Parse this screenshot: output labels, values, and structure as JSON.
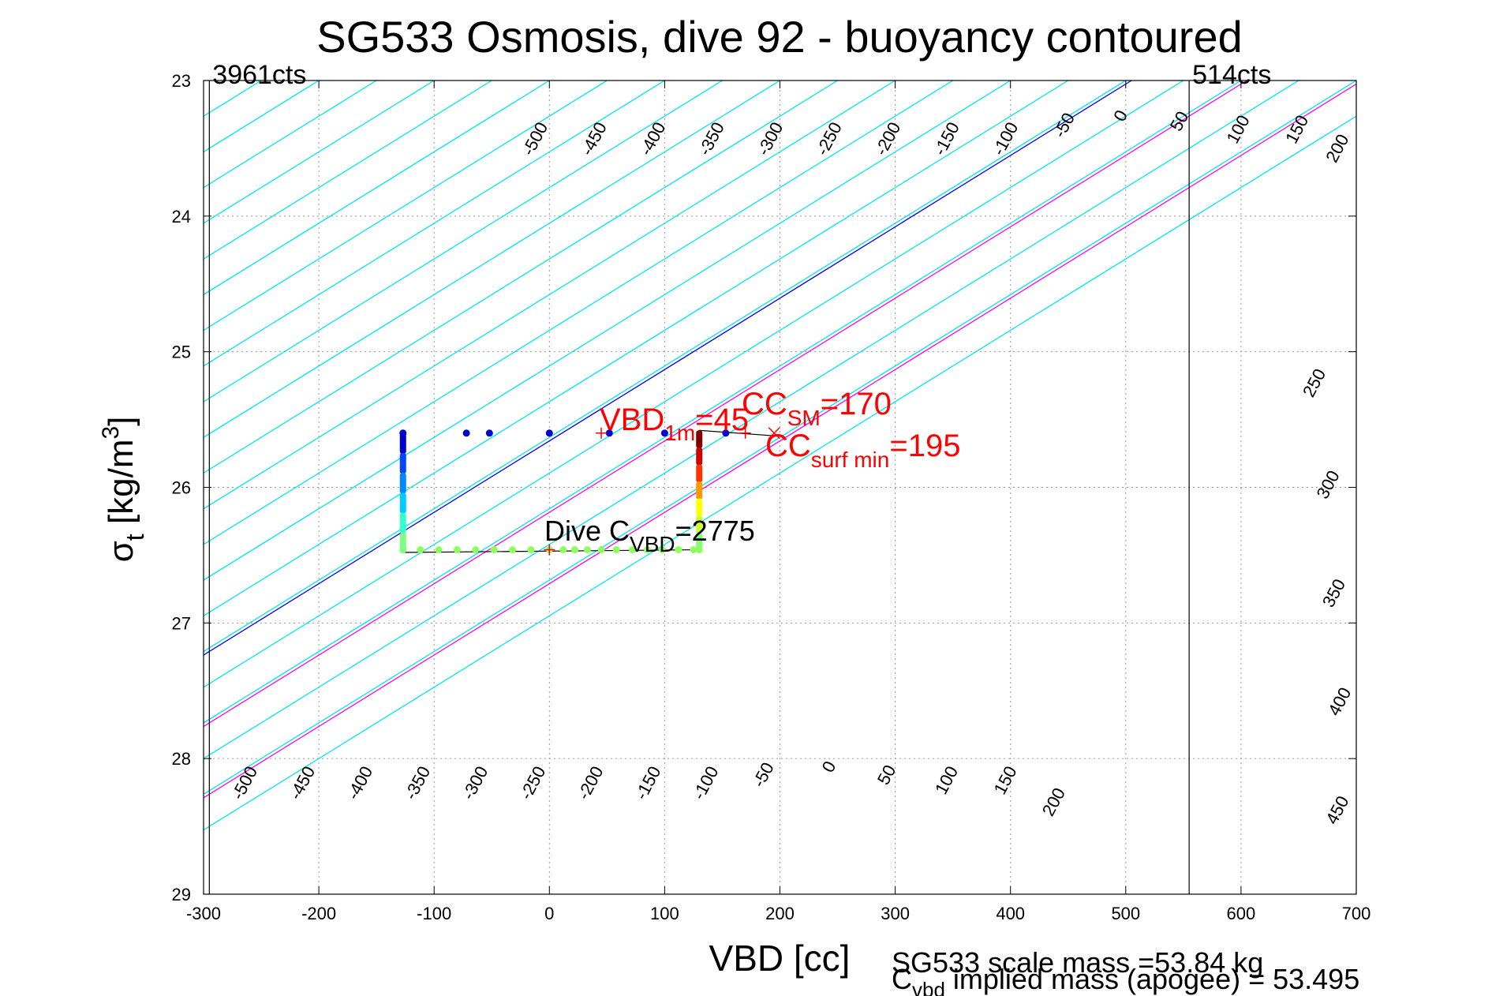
{
  "chart_data": {
    "type": "line",
    "title": "SG533 Osmosis, dive 92 - buoyancy contoured",
    "xlabel": "VBD [cc]",
    "ylabel_main": "σ",
    "ylabel_sub": "t",
    "ylabel_rest": " [kg/m",
    "ylabel_sup": "3",
    "ylabel_close": "]",
    "xlim": [
      -300,
      700
    ],
    "ylim": [
      23,
      29
    ],
    "y_reversed": true,
    "grid": "dotted",
    "xticks": [
      "-300",
      "-200",
      "-100",
      "0",
      "100",
      "200",
      "300",
      "400",
      "500",
      "600",
      "700"
    ],
    "yticks": [
      "23",
      "24",
      "25",
      "26",
      "27",
      "28",
      "29"
    ],
    "contour_slope_cc_per_sigma": 190,
    "contours": [
      {
        "level": -500,
        "x_at_sigma23": -650,
        "color": "#00e5ee"
      },
      {
        "level": -450,
        "x_at_sigma23": -600,
        "color": "#00e5ee"
      },
      {
        "level": -400,
        "x_at_sigma23": -550,
        "color": "#00e5ee"
      },
      {
        "level": -350,
        "x_at_sigma23": -500,
        "color": "#00e5ee"
      },
      {
        "level": -300,
        "x_at_sigma23": -450,
        "color": "#00e5ee"
      },
      {
        "level": -250,
        "x_at_sigma23": -400,
        "color": "#00e5ee"
      },
      {
        "level": -200,
        "x_at_sigma23": -350,
        "color": "#00e5ee"
      },
      {
        "level": -150,
        "x_at_sigma23": -300,
        "color": "#00e5ee"
      },
      {
        "level": -100,
        "x_at_sigma23": -250,
        "color": "#00e5ee"
      },
      {
        "level": -50,
        "x_at_sigma23": -200,
        "color": "#00e5ee"
      },
      {
        "level": 0,
        "x_at_sigma23": -150,
        "color": "#00e5ee"
      },
      {
        "level": 50,
        "x_at_sigma23": -100,
        "color": "#00e5ee"
      },
      {
        "level": 100,
        "x_at_sigma23": -50,
        "color": "#00e5ee"
      },
      {
        "level": 150,
        "x_at_sigma23": 0,
        "color": "#00e5ee"
      },
      {
        "level": 200,
        "x_at_sigma23": 50,
        "color": "#00e5ee"
      },
      {
        "level": 250,
        "x_at_sigma23": 100,
        "color": "#00e5ee"
      },
      {
        "level": 300,
        "x_at_sigma23": 150,
        "color": "#00e5ee"
      },
      {
        "level": 350,
        "x_at_sigma23": 200,
        "color": "#00e5ee"
      },
      {
        "level": 400,
        "x_at_sigma23": 250,
        "color": "#00e5ee"
      },
      {
        "level": 450,
        "x_at_sigma23": 300,
        "color": "#00e5ee"
      },
      {
        "level": 500,
        "x_at_sigma23": 350,
        "color": "#00e5ee"
      },
      {
        "level": 550,
        "x_at_sigma23": 400,
        "color": "#00e5ee"
      },
      {
        "level": 600,
        "x_at_sigma23": 450,
        "color": "#00e5ee"
      },
      {
        "level": 650,
        "x_at_sigma23": 500,
        "color": "#00e5ee"
      },
      {
        "level": 700,
        "x_at_sigma23": 550,
        "color": "#00e5ee"
      },
      {
        "level": 750,
        "x_at_sigma23": 600,
        "color": "#00e5ee"
      },
      {
        "level": 800,
        "x_at_sigma23": 650,
        "color": "#00e5ee"
      },
      {
        "level": 850,
        "x_at_sigma23": 700,
        "color": "#00e5ee"
      },
      {
        "level": 900,
        "x_at_sigma23": 750,
        "color": "#00e5ee"
      },
      {
        "level": 0,
        "x_at_sigma23": 505,
        "color": "#0000ff"
      },
      {
        "level": 100,
        "x_at_sigma23": 605,
        "color": "#ff00ff"
      },
      {
        "level": 200,
        "x_at_sigma23": 705,
        "color": "#ff00ff"
      }
    ],
    "contour_labels_top": [
      {
        "text": "-500",
        "vbd": -8,
        "sigma": 23.45
      },
      {
        "text": "-450",
        "vbd": 43,
        "sigma": 23.45
      },
      {
        "text": "-400",
        "vbd": 94,
        "sigma": 23.45
      },
      {
        "text": "-350",
        "vbd": 145,
        "sigma": 23.45
      },
      {
        "text": "-300",
        "vbd": 196,
        "sigma": 23.45
      },
      {
        "text": "-250",
        "vbd": 247,
        "sigma": 23.45
      },
      {
        "text": "-200",
        "vbd": 298,
        "sigma": 23.45
      },
      {
        "text": "-150",
        "vbd": 349,
        "sigma": 23.45
      },
      {
        "text": "-100",
        "vbd": 400,
        "sigma": 23.45
      },
      {
        "text": "-50",
        "vbd": 451,
        "sigma": 23.35
      },
      {
        "text": "0",
        "vbd": 500,
        "sigma": 23.28
      },
      {
        "text": "50",
        "vbd": 551,
        "sigma": 23.32
      },
      {
        "text": "100",
        "vbd": 602,
        "sigma": 23.38
      },
      {
        "text": "150",
        "vbd": 653,
        "sigma": 23.38
      },
      {
        "text": "200",
        "vbd": 688,
        "sigma": 23.52
      }
    ],
    "contour_labels_right": [
      {
        "text": "250",
        "vbd": 668,
        "sigma": 25.25
      },
      {
        "text": "300",
        "vbd": 680,
        "sigma": 26.0
      },
      {
        "text": "350",
        "vbd": 685,
        "sigma": 26.8
      },
      {
        "text": "400",
        "vbd": 690,
        "sigma": 27.6
      },
      {
        "text": "450",
        "vbd": 688,
        "sigma": 28.4
      }
    ],
    "contour_labels_bottom": [
      {
        "text": "-500",
        "vbd": -260,
        "sigma": 28.2
      },
      {
        "text": "-450",
        "vbd": -210,
        "sigma": 28.2
      },
      {
        "text": "-400",
        "vbd": -160,
        "sigma": 28.2
      },
      {
        "text": "-350",
        "vbd": -110,
        "sigma": 28.2
      },
      {
        "text": "-300",
        "vbd": -60,
        "sigma": 28.2
      },
      {
        "text": "-250",
        "vbd": -10,
        "sigma": 28.2
      },
      {
        "text": "-200",
        "vbd": 40,
        "sigma": 28.2
      },
      {
        "text": "-150",
        "vbd": 90,
        "sigma": 28.2
      },
      {
        "text": "-100",
        "vbd": 140,
        "sigma": 28.2
      },
      {
        "text": "-50",
        "vbd": 190,
        "sigma": 28.14
      },
      {
        "text": "0",
        "vbd": 247,
        "sigma": 28.08
      },
      {
        "text": "50",
        "vbd": 297,
        "sigma": 28.14
      },
      {
        "text": "100",
        "vbd": 349,
        "sigma": 28.18
      },
      {
        "text": "150",
        "vbd": 400,
        "sigma": 28.18
      },
      {
        "text": "200",
        "vbd": 442,
        "sigma": 28.34
      }
    ],
    "vlines": [
      {
        "vbd": -295,
        "label": "3961cts"
      },
      {
        "vbd": 555,
        "label": "514cts"
      }
    ],
    "profile_line": [
      [
        -127,
        25.61
      ],
      [
        -127,
        26.48
      ],
      [
        130,
        26.46
      ],
      [
        130,
        25.58
      ],
      [
        195,
        25.62
      ]
    ],
    "profile_points_top": [
      {
        "vbd": -127,
        "sigma": 25.6,
        "color": "#0000cc"
      },
      {
        "vbd": -72,
        "sigma": 25.6,
        "color": "#0000cc"
      },
      {
        "vbd": -52,
        "sigma": 25.6,
        "color": "#0000cc"
      },
      {
        "vbd": 0,
        "sigma": 25.6,
        "color": "#0000cc"
      },
      {
        "vbd": 52,
        "sigma": 25.6,
        "color": "#0000cc"
      },
      {
        "vbd": 100,
        "sigma": 25.6,
        "color": "#0000cc"
      },
      {
        "vbd": 153,
        "sigma": 25.6,
        "color": "#0000cc"
      }
    ],
    "profile_points_bottom": [
      {
        "vbd": -127,
        "sigma": 26.46,
        "color": "#7fff7f"
      },
      {
        "vbd": -112,
        "sigma": 26.46,
        "color": "#8fff5f"
      },
      {
        "vbd": -96,
        "sigma": 26.46,
        "color": "#8fff5f"
      },
      {
        "vbd": -80,
        "sigma": 26.46,
        "color": "#8fff5f"
      },
      {
        "vbd": -64,
        "sigma": 26.46,
        "color": "#8fff5f"
      },
      {
        "vbd": -48,
        "sigma": 26.46,
        "color": "#8fff5f"
      },
      {
        "vbd": -32,
        "sigma": 26.46,
        "color": "#8fff5f"
      },
      {
        "vbd": -16,
        "sigma": 26.46,
        "color": "#8fff5f"
      },
      {
        "vbd": 0,
        "sigma": 26.46,
        "color": "#8fff5f"
      },
      {
        "vbd": 12,
        "sigma": 26.46,
        "color": "#8fff5f"
      },
      {
        "vbd": 22,
        "sigma": 26.46,
        "color": "#8fff5f"
      },
      {
        "vbd": 33,
        "sigma": 26.46,
        "color": "#8fff5f"
      },
      {
        "vbd": 45,
        "sigma": 26.46,
        "color": "#8fff5f"
      },
      {
        "vbd": 58,
        "sigma": 26.46,
        "color": "#8fff5f"
      },
      {
        "vbd": 72,
        "sigma": 26.46,
        "color": "#8fff5f"
      },
      {
        "vbd": 85,
        "sigma": 26.46,
        "color": "#8fff5f"
      },
      {
        "vbd": 98,
        "sigma": 26.46,
        "color": "#8fff5f"
      },
      {
        "vbd": 112,
        "sigma": 26.46,
        "color": "#8fff5f"
      },
      {
        "vbd": 125,
        "sigma": 26.46,
        "color": "#8fff5f"
      },
      {
        "vbd": 130,
        "sigma": 26.46,
        "color": "#8fff5f"
      }
    ],
    "left_column": {
      "vbd": -127,
      "sigma_top": 25.6,
      "sigma_bottom": 26.48,
      "colors": [
        "#0000cc",
        "#0044ff",
        "#0088ff",
        "#00ccff",
        "#33ffcc",
        "#7fff7f"
      ]
    },
    "right_column": {
      "vbd": 130,
      "sigma_top": 25.58,
      "sigma_bottom": 26.46,
      "colors": [
        "#800000",
        "#cc0000",
        "#ff3300",
        "#ff9900",
        "#ffff00",
        "#ccff33",
        "#7fff7f"
      ]
    },
    "markers": [
      {
        "vbd": 45,
        "sigma": 25.6,
        "symbol": "+",
        "color": "#ff0000"
      },
      {
        "vbd": 170,
        "sigma": 25.6,
        "symbol": "+",
        "color": "#ff0000"
      },
      {
        "vbd": 195,
        "sigma": 25.6,
        "symbol": "x",
        "color": "#ff0000"
      },
      {
        "vbd": 0,
        "sigma": 26.46,
        "symbol": "+",
        "color": "#ff0000"
      }
    ],
    "annotations": {
      "vbd1m_main": "VBD",
      "vbd1m_sub": "1m",
      "vbd1m_value": "=45",
      "ccsm_main": "CC",
      "ccsm_sub": "SM",
      "ccsm_value": "=170",
      "ccsurf_main": "CC",
      "ccsurf_sub": "surf min",
      "ccsurf_value": "=195",
      "dive_main": "Dive C",
      "dive_sub": "VBD",
      "dive_value": "=2775"
    },
    "footer": {
      "line1": "SG533 scale mass =53.84 kg",
      "line2_main": "C",
      "line2_sub": "vbd",
      "line2_rest": " implied mass (apogee) = 53.495"
    },
    "colors": {
      "contour": "#00e5ee",
      "zero": "#0000ff",
      "positive": "#ff00ff",
      "annotation": "#ff0000",
      "grid": "#9a9a9a"
    }
  }
}
